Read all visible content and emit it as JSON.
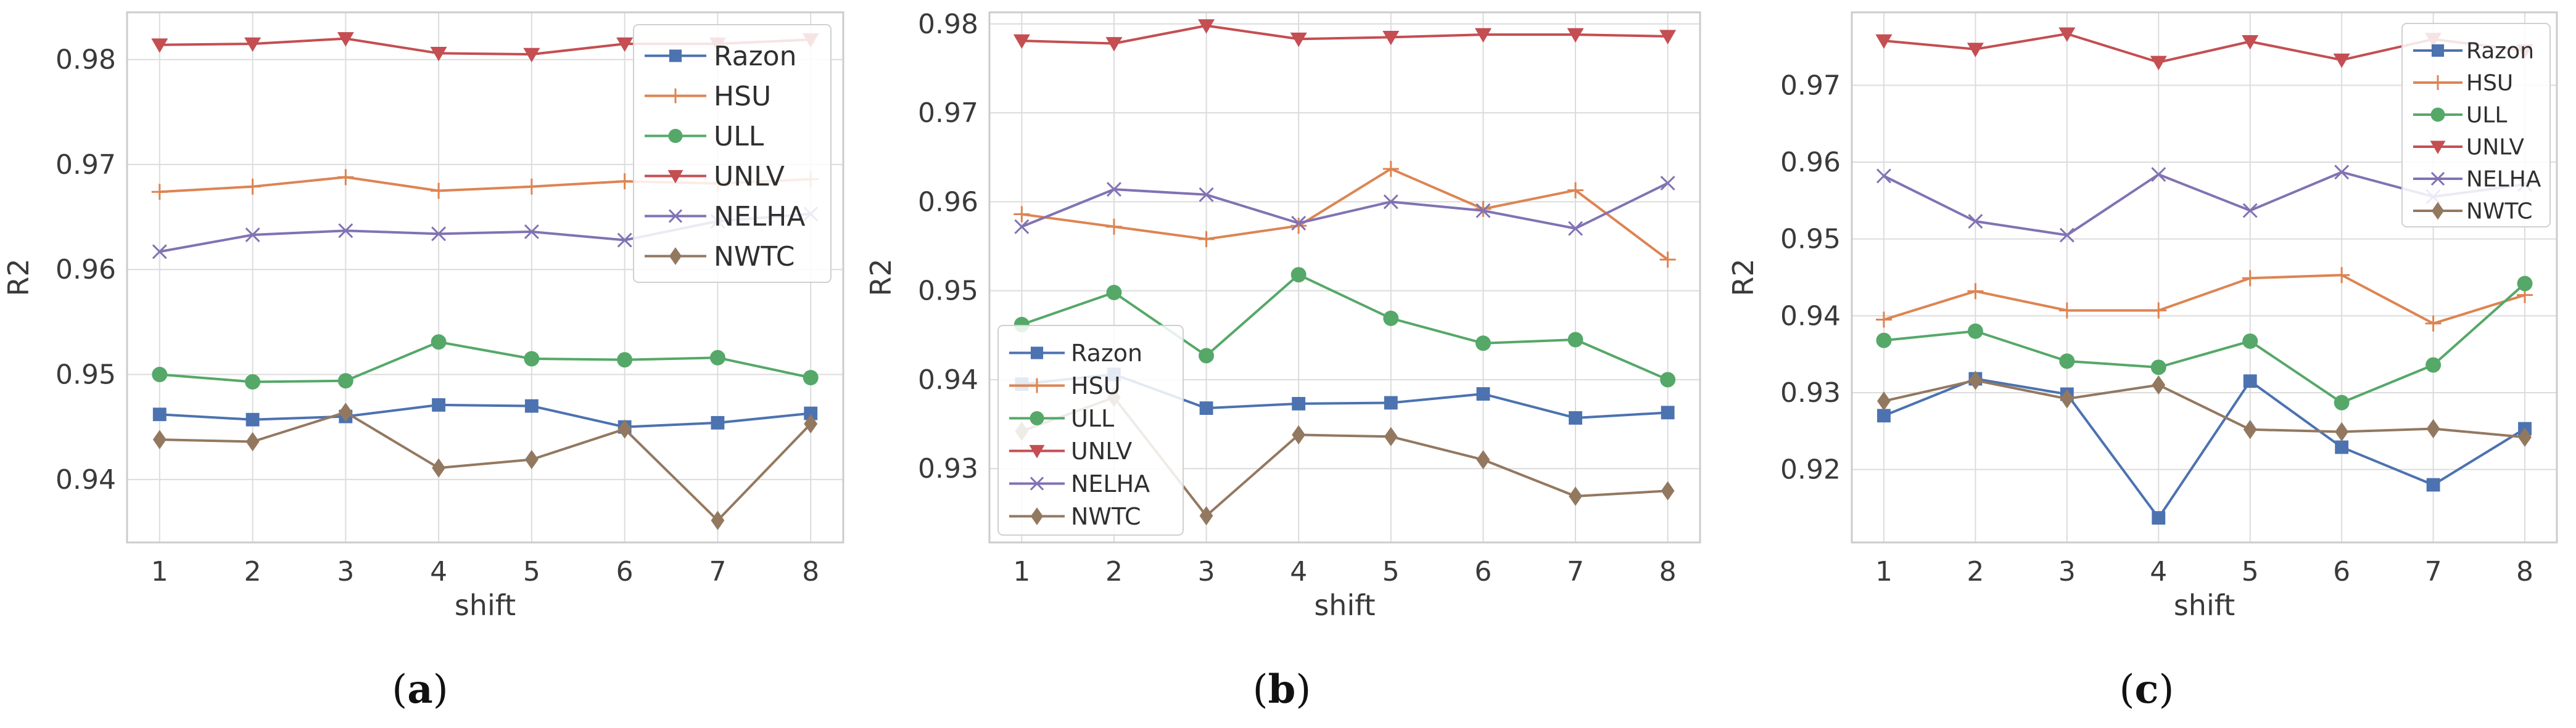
{
  "colors": {
    "Razon": "#4c72b0",
    "HSU": "#dd8452",
    "ULL": "#55a868",
    "UNLV": "#c44e52",
    "NELHA": "#8172b3",
    "NWTC": "#937860",
    "grid": "#dcdcdc",
    "spine": "#cccccc"
  },
  "chart_data": [
    {
      "type": "line",
      "caption_prefix": "(",
      "caption_letter": "a",
      "caption_suffix": ")",
      "xlabel": "shift",
      "ylabel": "R2",
      "x": [
        1,
        2,
        3,
        4,
        5,
        6,
        7,
        8
      ],
      "xlim": [
        0.65,
        8.35
      ],
      "ylim": [
        0.934,
        0.9845
      ],
      "yticks": [
        0.94,
        0.95,
        0.96,
        0.97,
        0.98
      ],
      "grid": true,
      "legend_position": "top-right",
      "series": [
        {
          "name": "Razon",
          "marker": "square",
          "values": [
            0.9462,
            0.9457,
            0.946,
            0.9471,
            0.947,
            0.945,
            0.9454,
            0.9463
          ]
        },
        {
          "name": "HSU",
          "marker": "plus",
          "values": [
            0.9674,
            0.9679,
            0.9688,
            0.9675,
            0.9679,
            0.9684,
            0.9682,
            0.9686
          ]
        },
        {
          "name": "ULL",
          "marker": "circle",
          "values": [
            0.95,
            0.9493,
            0.9494,
            0.9531,
            0.9515,
            0.9514,
            0.9516,
            0.9497
          ]
        },
        {
          "name": "UNLV",
          "marker": "triangle-down",
          "values": [
            0.9814,
            0.9815,
            0.982,
            0.9806,
            0.9805,
            0.9815,
            0.9815,
            0.9819
          ]
        },
        {
          "name": "NELHA",
          "marker": "x",
          "values": [
            0.9617,
            0.9633,
            0.9637,
            0.9634,
            0.9636,
            0.9628,
            0.9646,
            0.9653
          ]
        },
        {
          "name": "NWTC",
          "marker": "diamond",
          "values": [
            0.9438,
            0.9436,
            0.9464,
            0.9411,
            0.9419,
            0.9448,
            0.9361,
            0.9453
          ]
        }
      ]
    },
    {
      "type": "line",
      "caption_prefix": "(",
      "caption_letter": "b",
      "caption_suffix": ")",
      "xlabel": "shift",
      "ylabel": "R2",
      "x": [
        1,
        2,
        3,
        4,
        5,
        6,
        7,
        8
      ],
      "xlim": [
        0.65,
        8.35
      ],
      "ylim": [
        0.9217,
        0.9813
      ],
      "yticks": [
        0.93,
        0.94,
        0.95,
        0.96,
        0.97,
        0.98
      ],
      "grid": true,
      "legend_position": "bottom-left",
      "series": [
        {
          "name": "Razon",
          "marker": "square",
          "values": [
            0.9395,
            0.9406,
            0.9368,
            0.9373,
            0.9374,
            0.9384,
            0.9357,
            0.9363
          ]
        },
        {
          "name": "HSU",
          "marker": "plus",
          "values": [
            0.9586,
            0.9572,
            0.9558,
            0.9573,
            0.9637,
            0.9592,
            0.9613,
            0.9535
          ]
        },
        {
          "name": "ULL",
          "marker": "circle",
          "values": [
            0.9462,
            0.9498,
            0.9427,
            0.9518,
            0.9469,
            0.9441,
            0.9445,
            0.94
          ]
        },
        {
          "name": "UNLV",
          "marker": "triangle-down",
          "values": [
            0.9781,
            0.9778,
            0.9798,
            0.9783,
            0.9785,
            0.9788,
            0.9788,
            0.9786
          ]
        },
        {
          "name": "NELHA",
          "marker": "x",
          "values": [
            0.9572,
            0.9614,
            0.9608,
            0.9576,
            0.96,
            0.959,
            0.957,
            0.9621
          ]
        },
        {
          "name": "NWTC",
          "marker": "diamond",
          "values": [
            0.9342,
            0.938,
            0.9247,
            0.9338,
            0.9336,
            0.931,
            0.9269,
            0.9275
          ]
        }
      ]
    },
    {
      "type": "line",
      "caption_prefix": "(",
      "caption_letter": "c",
      "caption_suffix": ")",
      "xlabel": "shift",
      "ylabel": "R2",
      "x": [
        1,
        2,
        3,
        4,
        5,
        6,
        7,
        8
      ],
      "xlim": [
        0.65,
        8.35
      ],
      "ylim": [
        0.9105,
        0.9795
      ],
      "yticks": [
        0.92,
        0.93,
        0.94,
        0.95,
        0.96,
        0.97
      ],
      "grid": true,
      "legend_position": "top-right",
      "series": [
        {
          "name": "Razon",
          "marker": "square",
          "values": [
            0.927,
            0.9318,
            0.9298,
            0.9137,
            0.9315,
            0.9229,
            0.918,
            0.9253
          ]
        },
        {
          "name": "HSU",
          "marker": "plus",
          "values": [
            0.9395,
            0.9432,
            0.9407,
            0.9407,
            0.9449,
            0.9453,
            0.939,
            0.9427
          ]
        },
        {
          "name": "ULL",
          "marker": "circle",
          "values": [
            0.9368,
            0.938,
            0.9341,
            0.9333,
            0.9367,
            0.9287,
            0.9336,
            0.9442
          ]
        },
        {
          "name": "UNLV",
          "marker": "triangle-down",
          "values": [
            0.9758,
            0.9747,
            0.9767,
            0.973,
            0.9757,
            0.9733,
            0.976,
            0.9745
          ]
        },
        {
          "name": "NELHA",
          "marker": "x",
          "values": [
            0.9582,
            0.9523,
            0.9505,
            0.9584,
            0.9537,
            0.9587,
            0.9555,
            0.9571
          ]
        },
        {
          "name": "NWTC",
          "marker": "diamond",
          "values": [
            0.9289,
            0.9316,
            0.9292,
            0.931,
            0.9252,
            0.9249,
            0.9253,
            0.9242
          ]
        }
      ]
    }
  ]
}
